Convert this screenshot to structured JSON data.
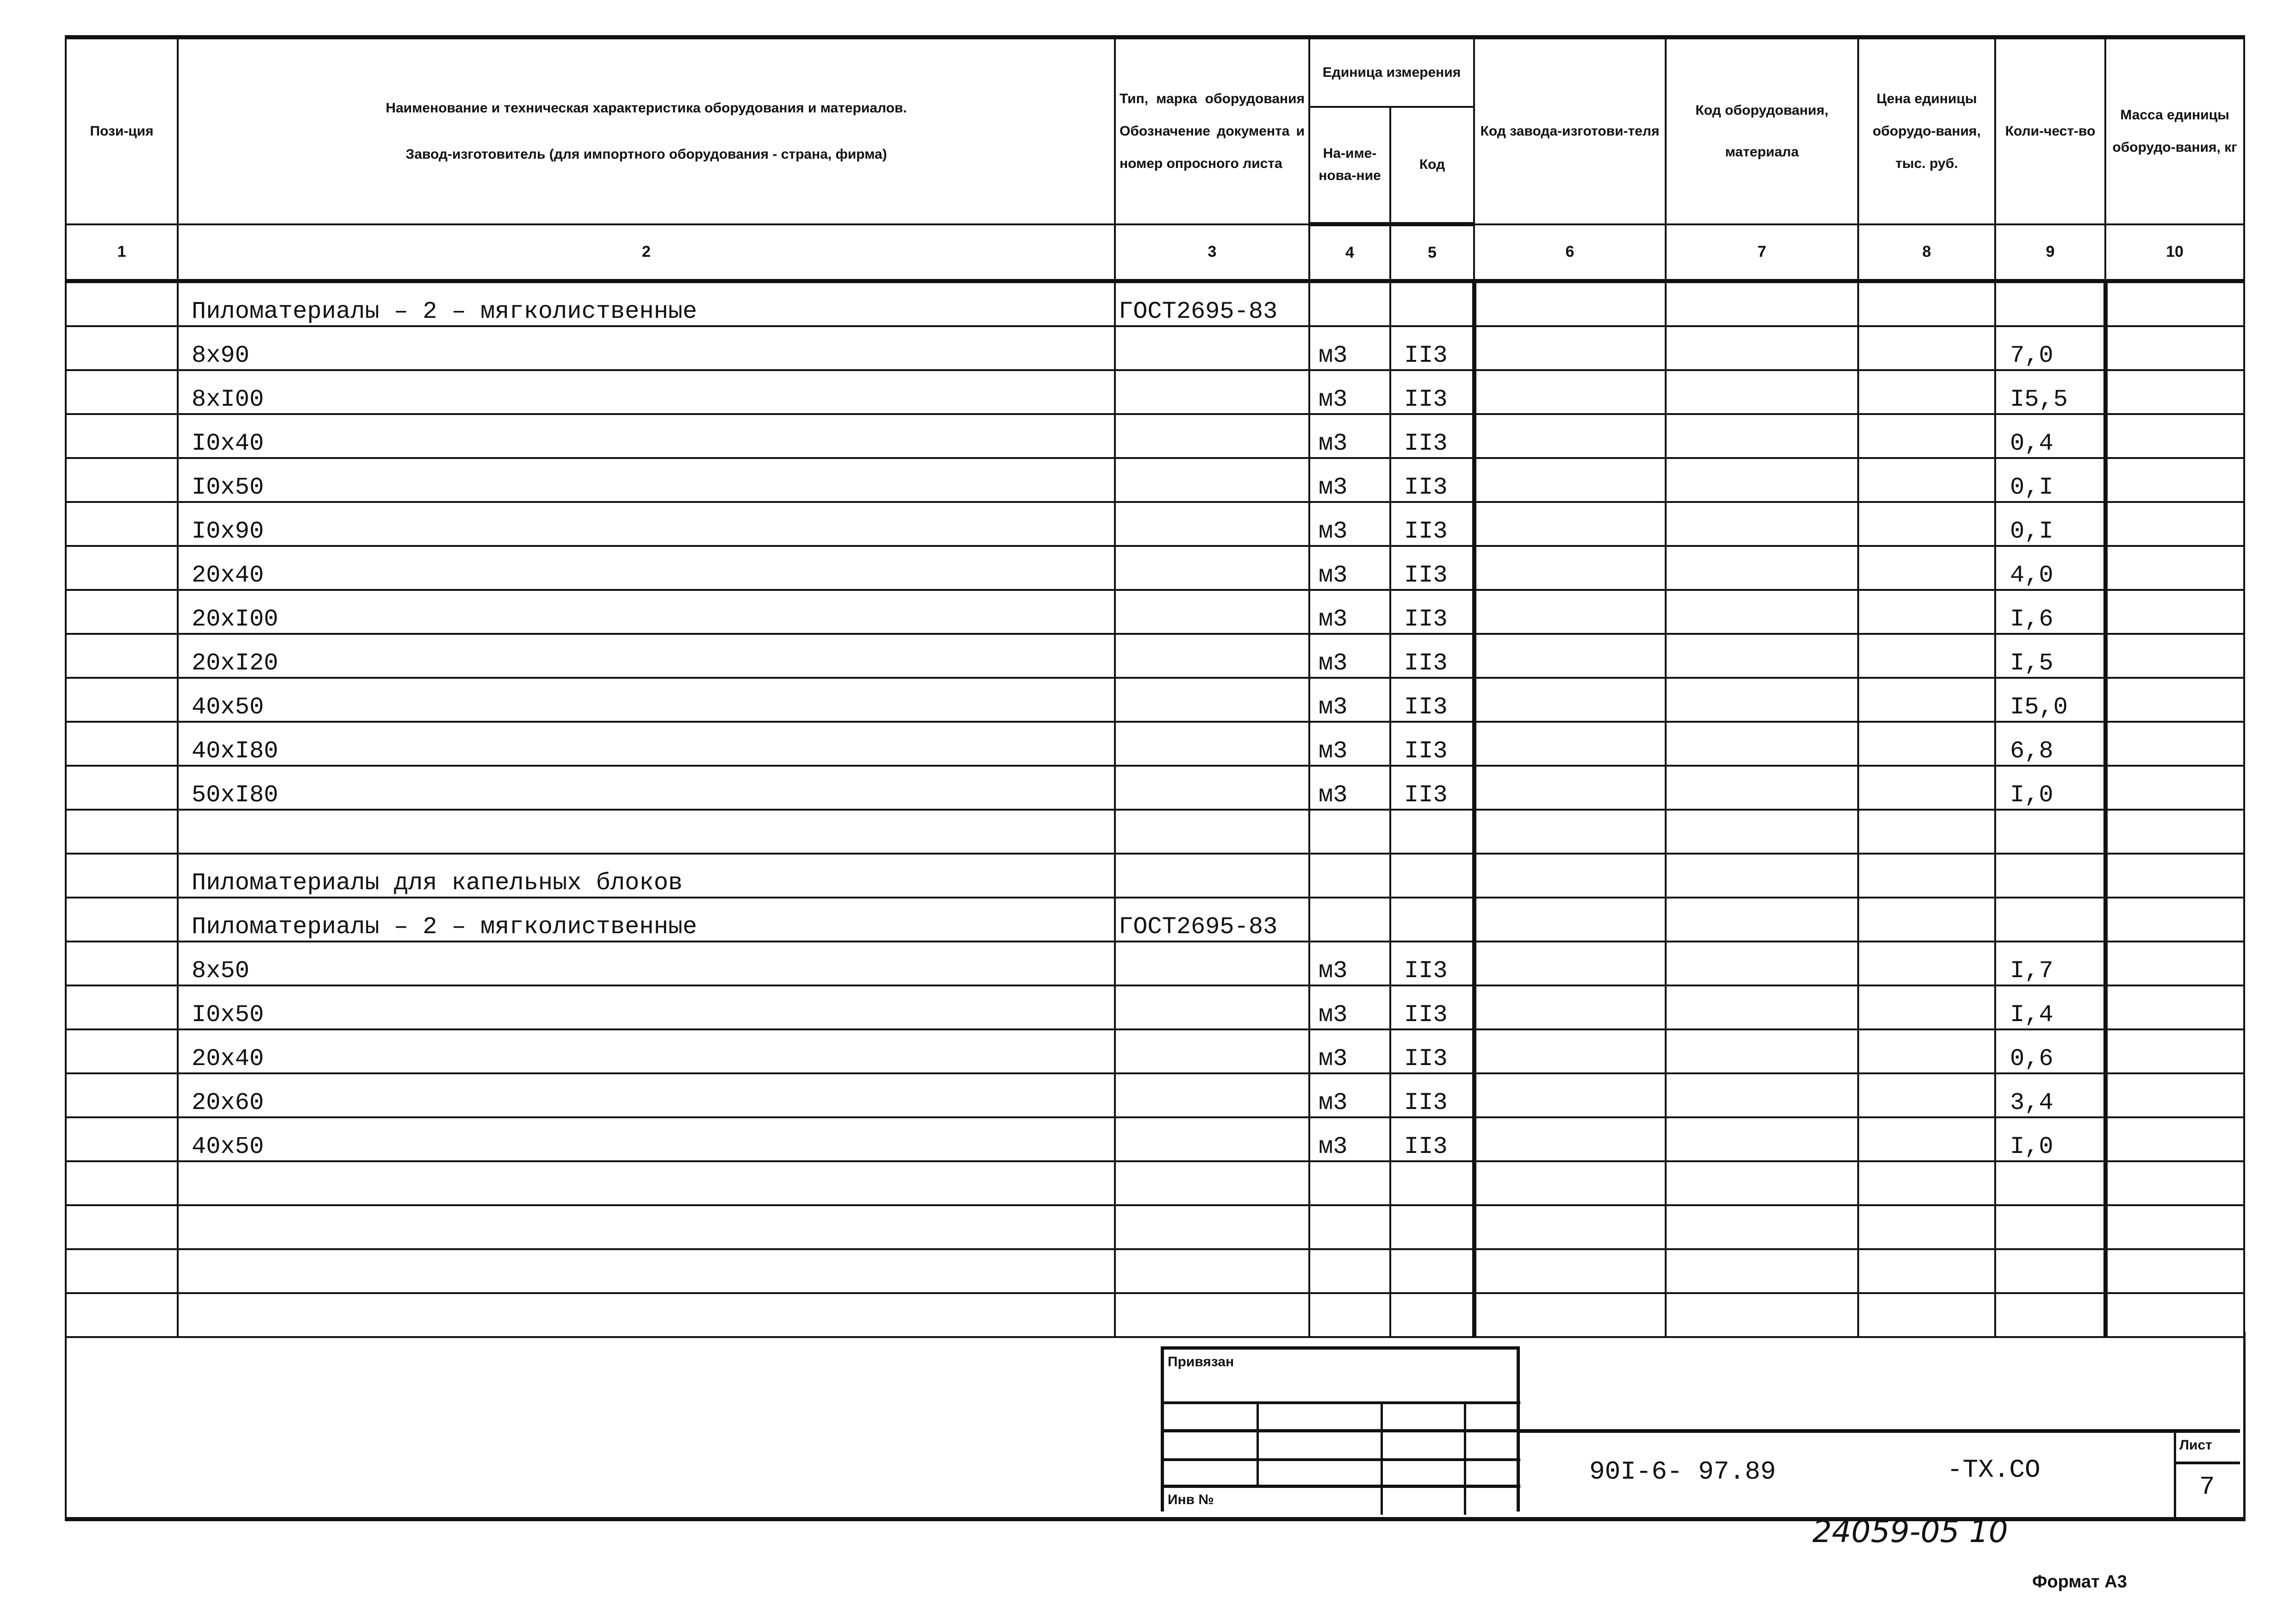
{
  "header": {
    "col1": "Пози-ция",
    "col2_line1": "Наименование и техническая характеристика оборудования и материалов.",
    "col2_line2": "Завод-изготовитель (для импортного оборудования - страна, фирма)",
    "col3": "Тип, марка оборудования Обозначение документа и номер опросного листа",
    "unit_group": "Единица измерения",
    "col4": "На-име-нова-ние",
    "col5": "Код",
    "col6": "Код завода-изготови-теля",
    "col7": "Код оборудования, материала",
    "col8": "Цена единицы оборудо-вания, тыс. руб.",
    "col9": "Коли-чест-во",
    "col10": "Масса единицы оборудо-вания, кг",
    "numbers": [
      "1",
      "2",
      "3",
      "4",
      "5",
      "6",
      "7",
      "8",
      "9",
      "10"
    ]
  },
  "rows": [
    {
      "name": "Пиломатериалы – 2 – мягколиственные",
      "doc": "ГОСТ2695-83",
      "unit": "",
      "code": "",
      "qty": ""
    },
    {
      "name": "8x90",
      "doc": "",
      "unit": "м3",
      "code": "II3",
      "qty": "7,0"
    },
    {
      "name": "8xI00",
      "doc": "",
      "unit": "м3",
      "code": "II3",
      "qty": "I5,5"
    },
    {
      "name": "I0x40",
      "doc": "",
      "unit": "м3",
      "code": "II3",
      "qty": "0,4"
    },
    {
      "name": "I0x50",
      "doc": "",
      "unit": "м3",
      "code": "II3",
      "qty": "0,I"
    },
    {
      "name": "I0x90",
      "doc": "",
      "unit": "м3",
      "code": "II3",
      "qty": "0,I"
    },
    {
      "name": "20x40",
      "doc": "",
      "unit": "м3",
      "code": "II3",
      "qty": "4,0"
    },
    {
      "name": "20xI00",
      "doc": "",
      "unit": "м3",
      "code": "II3",
      "qty": "I,6"
    },
    {
      "name": "20xI20",
      "doc": "",
      "unit": "м3",
      "code": "II3",
      "qty": "I,5"
    },
    {
      "name": "40x50",
      "doc": "",
      "unit": "м3",
      "code": "II3",
      "qty": "I5,0"
    },
    {
      "name": "40xI80",
      "doc": "",
      "unit": "м3",
      "code": "II3",
      "qty": "6,8"
    },
    {
      "name": "50xI80",
      "doc": "",
      "unit": "м3",
      "code": "II3",
      "qty": "I,0"
    },
    {
      "name": "",
      "doc": "",
      "unit": "",
      "code": "",
      "qty": ""
    },
    {
      "name": "Пиломатериалы для капельных блоков",
      "doc": "",
      "unit": "",
      "code": "",
      "qty": ""
    },
    {
      "name": "Пиломатериалы – 2 – мягколиственные",
      "doc": "ГОСТ2695-83",
      "unit": "",
      "code": "",
      "qty": ""
    },
    {
      "name": "8x50",
      "doc": "",
      "unit": "м3",
      "code": "II3",
      "qty": "I,7"
    },
    {
      "name": "I0x50",
      "doc": "",
      "unit": "м3",
      "code": "II3",
      "qty": "I,4"
    },
    {
      "name": "20x40",
      "doc": "",
      "unit": "м3",
      "code": "II3",
      "qty": "0,6"
    },
    {
      "name": "20x60",
      "doc": "",
      "unit": "м3",
      "code": "II3",
      "qty": "3,4"
    },
    {
      "name": "40x50",
      "doc": "",
      "unit": "м3",
      "code": "II3",
      "qty": "I,0"
    },
    {
      "name": "",
      "doc": "",
      "unit": "",
      "code": "",
      "qty": ""
    },
    {
      "name": "",
      "doc": "",
      "unit": "",
      "code": "",
      "qty": ""
    },
    {
      "name": "",
      "doc": "",
      "unit": "",
      "code": "",
      "qty": ""
    },
    {
      "name": "",
      "doc": "",
      "unit": "",
      "code": "",
      "qty": ""
    }
  ],
  "stamp": {
    "bound_label": "Привязан",
    "inv_label": "Инв №",
    "designation": "90I-6- 97.89",
    "designation_suffix": "-TX.CO",
    "sheet_label": "Лист",
    "sheet_number": "7",
    "archive_number": "24059-05 10",
    "format": "Формат А3"
  }
}
